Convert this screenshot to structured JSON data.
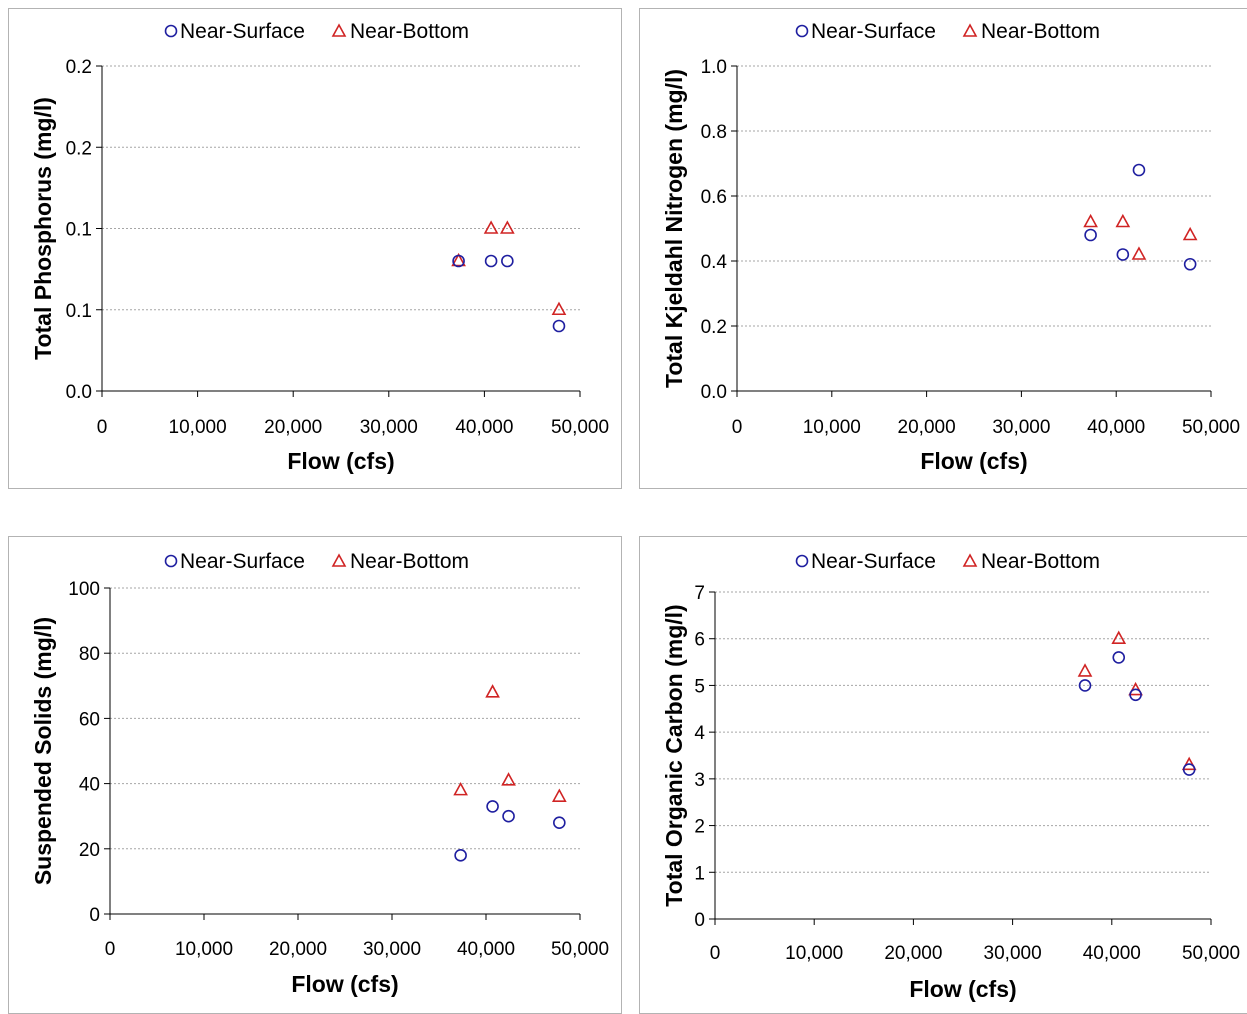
{
  "colors": {
    "near_surface": "#1f1fa0",
    "near_bottom": "#d02424",
    "grid": "#a6a6a6",
    "axis": "#000000"
  },
  "legend": {
    "near_surface": "Near-Surface",
    "near_bottom": "Near-Bottom"
  },
  "chart_data": [
    {
      "type": "scatter",
      "xlabel": "Flow (cfs)",
      "ylabel": "Total Phosphorus (mg/l)",
      "xlim": [
        0,
        50000
      ],
      "ylim": [
        0,
        0.2
      ],
      "xticks": [
        0,
        10000,
        20000,
        30000,
        40000,
        50000
      ],
      "xtick_labels": [
        "0",
        "10,000",
        "20,000",
        "30,000",
        "40,000",
        "50,000"
      ],
      "yticks": [
        0,
        0.05,
        0.1,
        0.15,
        0.2
      ],
      "ytick_labels": [
        "0.0",
        "0.1",
        "0.1",
        "0.2",
        "0.2"
      ],
      "grid": true,
      "legend_position": "top",
      "series": [
        {
          "name": "Near-Surface",
          "marker": "circle",
          "x": [
            37300,
            40700,
            42400,
            47800
          ],
          "y": [
            0.08,
            0.08,
            0.08,
            0.04
          ]
        },
        {
          "name": "Near-Bottom",
          "marker": "triangle",
          "x": [
            37300,
            40700,
            42400,
            47800
          ],
          "y": [
            0.08,
            0.1,
            0.1,
            0.05
          ]
        }
      ]
    },
    {
      "type": "scatter",
      "xlabel": "Flow (cfs)",
      "ylabel": "Total Kjeldahl Nitrogen (mg/l)",
      "xlim": [
        0,
        50000
      ],
      "ylim": [
        0,
        1.0
      ],
      "xticks": [
        0,
        10000,
        20000,
        30000,
        40000,
        50000
      ],
      "xtick_labels": [
        "0",
        "10,000",
        "20,000",
        "30,000",
        "40,000",
        "50,000"
      ],
      "yticks": [
        0,
        0.2,
        0.4,
        0.6,
        0.8,
        1.0
      ],
      "ytick_labels": [
        "0.0",
        "0.2",
        "0.4",
        "0.6",
        "0.8",
        "1.0"
      ],
      "grid": true,
      "legend_position": "top",
      "series": [
        {
          "name": "Near-Surface",
          "marker": "circle",
          "x": [
            37300,
            40700,
            42400,
            47800
          ],
          "y": [
            0.48,
            0.42,
            0.68,
            0.39
          ]
        },
        {
          "name": "Near-Bottom",
          "marker": "triangle",
          "x": [
            37300,
            40700,
            42400,
            47800
          ],
          "y": [
            0.52,
            0.52,
            0.42,
            0.48
          ]
        }
      ]
    },
    {
      "type": "scatter",
      "xlabel": "Flow (cfs)",
      "ylabel": "Suspended Solids (mg/l)",
      "xlim": [
        0,
        50000
      ],
      "ylim": [
        0,
        100
      ],
      "xticks": [
        0,
        10000,
        20000,
        30000,
        40000,
        50000
      ],
      "xtick_labels": [
        "0",
        "10,000",
        "20,000",
        "30,000",
        "40,000",
        "50,000"
      ],
      "yticks": [
        0,
        20,
        40,
        60,
        80,
        100
      ],
      "ytick_labels": [
        "0",
        "20",
        "40",
        "60",
        "80",
        "100"
      ],
      "grid": true,
      "legend_position": "top",
      "series": [
        {
          "name": "Near-Surface",
          "marker": "circle",
          "x": [
            37300,
            40700,
            42400,
            47800
          ],
          "y": [
            18,
            33,
            30,
            28
          ]
        },
        {
          "name": "Near-Bottom",
          "marker": "triangle",
          "x": [
            37300,
            40700,
            42400,
            47800
          ],
          "y": [
            38,
            68,
            41,
            36
          ]
        }
      ]
    },
    {
      "type": "scatter",
      "xlabel": "Flow (cfs)",
      "ylabel": "Total Organic Carbon (mg/l)",
      "xlim": [
        0,
        50000
      ],
      "ylim": [
        0,
        7
      ],
      "xticks": [
        0,
        10000,
        20000,
        30000,
        40000,
        50000
      ],
      "xtick_labels": [
        "0",
        "10,000",
        "20,000",
        "30,000",
        "40,000",
        "50,000"
      ],
      "yticks": [
        0,
        1,
        2,
        3,
        4,
        5,
        6,
        7
      ],
      "ytick_labels": [
        "0",
        "1",
        "2",
        "3",
        "4",
        "5",
        "6",
        "7"
      ],
      "grid": true,
      "legend_position": "top",
      "series": [
        {
          "name": "Near-Surface",
          "marker": "circle",
          "x": [
            37300,
            40700,
            42400,
            47800
          ],
          "y": [
            5.0,
            5.6,
            4.8,
            3.2
          ]
        },
        {
          "name": "Near-Bottom",
          "marker": "triangle",
          "x": [
            37300,
            40700,
            42400,
            47800
          ],
          "y": [
            5.3,
            6.0,
            4.9,
            3.3
          ]
        }
      ]
    }
  ]
}
